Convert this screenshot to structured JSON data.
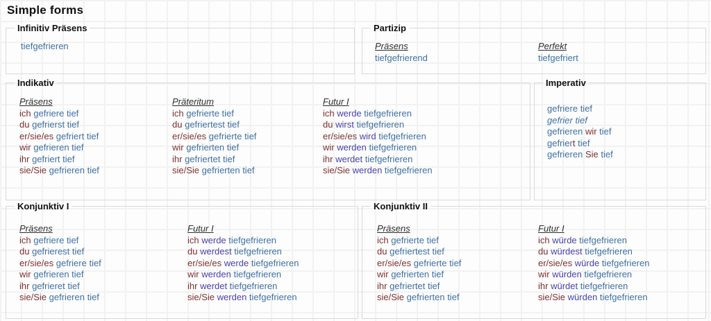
{
  "title": "Simple forms",
  "colors": {
    "pronoun": "#7d2f2f",
    "verb": "#3f70a2",
    "auxiliary": "#4a41a8",
    "border": "#d9d9d9"
  },
  "infinitiv": {
    "legend": "Infinitiv Präsens",
    "form": "tiefgefrieren"
  },
  "partizip": {
    "legend": "Partizip",
    "columns": [
      {
        "header": "Präsens",
        "form": "tiefgefrierend"
      },
      {
        "header": "Perfekt",
        "form": "tiefgefriert"
      }
    ]
  },
  "indikativ": {
    "legend": "Indikativ",
    "columns": [
      {
        "header": "Präsens",
        "rows": [
          {
            "p": "ich",
            "v": "gefriere tief"
          },
          {
            "p": "du",
            "v": "gefrierst tief"
          },
          {
            "p": "er/sie/es",
            "v": "gefriert tief"
          },
          {
            "p": "wir",
            "v": "gefrieren tief"
          },
          {
            "p": "ihr",
            "v": "gefriert tief"
          },
          {
            "p": "sie/Sie",
            "v": "gefrieren tief"
          }
        ]
      },
      {
        "header": "Präteritum",
        "rows": [
          {
            "p": "ich",
            "v": "gefrierte tief"
          },
          {
            "p": "du",
            "v": "gefriertest tief"
          },
          {
            "p": "er/sie/es",
            "v": "gefrierte tief"
          },
          {
            "p": "wir",
            "v": "gefrierten tief"
          },
          {
            "p": "ihr",
            "v": "gefriertet tief"
          },
          {
            "p": "sie/Sie",
            "v": "gefrierten tief"
          }
        ]
      },
      {
        "header": "Futur I",
        "rows": [
          {
            "p": "ich",
            "a": "werde",
            "v": "tiefgefrieren"
          },
          {
            "p": "du",
            "a": "wirst",
            "v": "tiefgefrieren"
          },
          {
            "p": "er/sie/es",
            "a": "wird",
            "v": "tiefgefrieren"
          },
          {
            "p": "wir",
            "a": "werden",
            "v": "tiefgefrieren"
          },
          {
            "p": "ihr",
            "a": "werdet",
            "v": "tiefgefrieren"
          },
          {
            "p": "sie/Sie",
            "a": "werden",
            "v": "tiefgefrieren"
          }
        ]
      }
    ]
  },
  "imperativ": {
    "legend": "Imperativ",
    "rows": [
      {
        "segs": [
          {
            "t": "gefriere tief",
            "k": "v"
          }
        ]
      },
      {
        "segs": [
          {
            "t": "gefrier tief",
            "k": "vi"
          }
        ]
      },
      {
        "segs": [
          {
            "t": "gefrieren",
            "k": "v"
          },
          {
            "t": "wir",
            "k": "p"
          },
          {
            "t": "tief",
            "k": "v"
          }
        ]
      },
      {
        "segs": [
          {
            "t": "gefrier",
            "k": "v"
          },
          {
            "t": "t",
            "k": "p",
            "g": 1
          },
          {
            "t": "tief",
            "k": "v"
          }
        ]
      },
      {
        "segs": [
          {
            "t": "gefrieren",
            "k": "v"
          },
          {
            "t": "Sie",
            "k": "p"
          },
          {
            "t": "tief",
            "k": "v"
          }
        ]
      }
    ]
  },
  "konjunktiv1": {
    "legend": "Konjunktiv I",
    "columns": [
      {
        "header": "Präsens",
        "rows": [
          {
            "p": "ich",
            "v": "gefriere tief"
          },
          {
            "p": "du",
            "v": "gefrierest tief"
          },
          {
            "p": "er/sie/es",
            "v": "gefriere tief"
          },
          {
            "p": "wir",
            "v": "gefrieren tief"
          },
          {
            "p": "ihr",
            "v": "gefrieret tief"
          },
          {
            "p": "sie/Sie",
            "v": "gefrieren tief"
          }
        ]
      },
      {
        "header": "Futur I",
        "rows": [
          {
            "p": "ich",
            "a": "werde",
            "v": "tiefgefrieren"
          },
          {
            "p": "du",
            "a": "werdest",
            "v": "tiefgefrieren"
          },
          {
            "p": "er/sie/es",
            "a": "werde",
            "v": "tiefgefrieren"
          },
          {
            "p": "wir",
            "a": "werden",
            "v": "tiefgefrieren"
          },
          {
            "p": "ihr",
            "a": "werdet",
            "v": "tiefgefrieren"
          },
          {
            "p": "sie/Sie",
            "a": "werden",
            "v": "tiefgefrieren"
          }
        ]
      }
    ]
  },
  "konjunktiv2": {
    "legend": "Konjunktiv II",
    "columns": [
      {
        "header": "Präsens",
        "rows": [
          {
            "p": "ich",
            "v": "gefrierte tief"
          },
          {
            "p": "du",
            "v": "gefriertest tief"
          },
          {
            "p": "er/sie/es",
            "v": "gefrierte tief"
          },
          {
            "p": "wir",
            "v": "gefrierten tief"
          },
          {
            "p": "ihr",
            "v": "gefriertet tief"
          },
          {
            "p": "sie/Sie",
            "v": "gefrierten tief"
          }
        ]
      },
      {
        "header": "Futur I",
        "rows": [
          {
            "p": "ich",
            "a": "würde",
            "v": "tiefgefrieren"
          },
          {
            "p": "du",
            "a": "würdest",
            "v": "tiefgefrieren"
          },
          {
            "p": "er/sie/es",
            "a": "würde",
            "v": "tiefgefrieren"
          },
          {
            "p": "wir",
            "a": "würden",
            "v": "tiefgefrieren"
          },
          {
            "p": "ihr",
            "a": "würdet",
            "v": "tiefgefrieren"
          },
          {
            "p": "sie/Sie",
            "a": "würden",
            "v": "tiefgefrieren"
          }
        ]
      }
    ]
  }
}
